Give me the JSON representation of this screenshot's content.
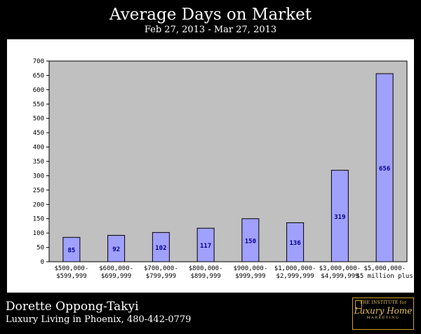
{
  "header": {
    "title": "Average Days on Market",
    "subtitle": "Feb 27, 2013 - Mar 27, 2013"
  },
  "footer": {
    "name": "Dorette Oppong-Takyi",
    "tagline": "Luxury Living in Phoenix, 480-442-0779",
    "logo": {
      "line1": "THE INSTITUTE for",
      "line2": "Luxury Home",
      "line3": "MARKETING"
    }
  },
  "colors": {
    "plot_background": "#c0c0c0",
    "bar_fill": "#a0a0ff",
    "bar_stroke": "#000000",
    "value_label": "#00008b"
  },
  "chart_data": {
    "type": "bar",
    "title": "Average Days on Market",
    "subtitle": "Feb 27, 2013 - Mar 27, 2013",
    "xlabel": "",
    "ylabel": "",
    "categories": [
      [
        "$500,000-",
        "$599,999"
      ],
      [
        "$600,000-",
        "$699,999"
      ],
      [
        "$700,000-",
        "$799,999"
      ],
      [
        "$800,000-",
        "$899,999"
      ],
      [
        "$900,000-",
        "$999,999"
      ],
      [
        "$1,000,000-",
        "$2,999,999"
      ],
      [
        "$3,000,000-",
        "$4,999,999"
      ],
      [
        "$5,000,000-",
        "$5 million plus"
      ]
    ],
    "values": [
      85,
      92,
      102,
      117,
      150,
      136,
      319,
      656
    ],
    "ylim": [
      0,
      700
    ],
    "yticks": [
      0,
      50,
      100,
      150,
      200,
      250,
      300,
      350,
      400,
      450,
      500,
      550,
      600,
      650,
      700
    ],
    "grid": false,
    "legend": "none"
  }
}
